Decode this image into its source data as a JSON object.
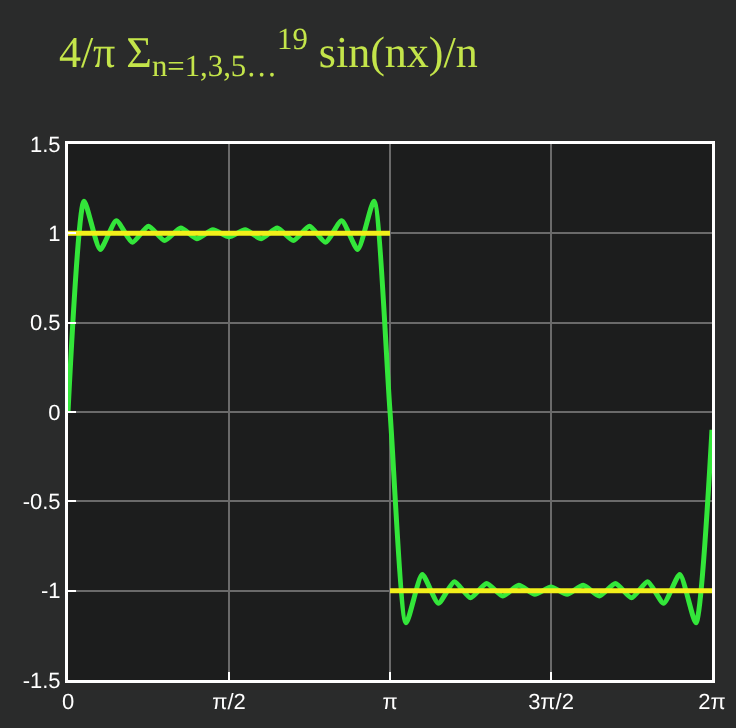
{
  "chart_data": {
    "type": "line",
    "title": "4/π Σ$_{n=1,3,5…}$$^{19}$ sin(nx)/n",
    "xlim": [
      0,
      6.2832
    ],
    "xticks": [
      {
        "value": 0,
        "label": "0"
      },
      {
        "value": 1.5708,
        "label": "π/2"
      },
      {
        "value": 3.1416,
        "label": "π"
      },
      {
        "value": 4.7124,
        "label": "3π/2"
      },
      {
        "value": 6.2832,
        "label": "2π"
      }
    ],
    "ylim": [
      -1.5,
      1.5
    ],
    "yticks": [
      -1.5,
      -1,
      -0.5,
      0,
      0.5,
      1,
      1.5
    ],
    "grid": true,
    "marker": "none",
    "line_style": "solid",
    "series": [
      {
        "color": "#33e63a",
        "x": [
          0,
          0.157,
          0.314,
          0.471,
          0.628,
          0.785,
          0.942,
          1.1,
          1.257,
          1.414,
          1.571,
          1.728,
          1.885,
          2.042,
          2.199,
          2.356,
          2.513,
          2.67,
          2.827,
          2.985,
          3.142,
          3.299,
          3.456,
          3.613,
          3.77,
          3.927,
          4.084,
          4.241,
          4.398,
          4.555,
          4.712,
          4.869,
          5.027,
          5.184,
          5.341,
          5.498,
          5.655,
          5.812,
          5.969,
          6.126,
          6.283
        ],
        "values": [
          0,
          1.18,
          0.91,
          1.07,
          0.95,
          1.04,
          0.96,
          1.03,
          0.97,
          1.02,
          0.98,
          1.02,
          0.97,
          1.03,
          0.96,
          1.04,
          0.95,
          1.07,
          0.91,
          1.18,
          0,
          -1.18,
          -0.91,
          -1.07,
          -0.95,
          -1.04,
          -0.96,
          -1.03,
          -0.97,
          -1.02,
          -0.98,
          -1.02,
          -0.97,
          -1.03,
          -0.96,
          -1.04,
          -0.95,
          -1.07,
          -0.91,
          -1.18,
          -0.1
        ]
      },
      {
        "color": "#f2ef1a",
        "x": [
          0,
          3.1416
        ],
        "values": [
          1,
          1
        ]
      },
      {
        "color": "#f2ef1a",
        "x": [
          3.1416,
          6.2832
        ],
        "values": [
          -1,
          -1
        ]
      }
    ]
  }
}
